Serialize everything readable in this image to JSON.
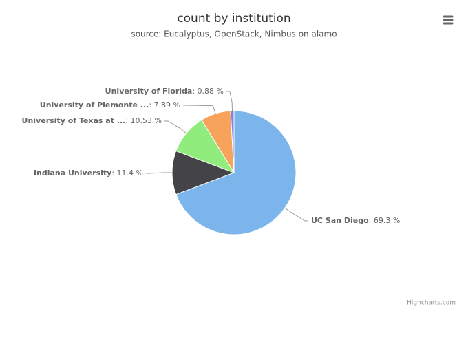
{
  "chart_data": {
    "type": "pie",
    "title": "count by institution",
    "subtitle": "source: Eucalyptus, OpenStack, Nimbus on alamo",
    "categories": [
      "UC San Diego",
      "Indiana University",
      "University of Texas at ...",
      "University of Piemonte ...",
      "University of Florida"
    ],
    "values": [
      69.3,
      11.4,
      10.53,
      7.89,
      0.88
    ],
    "value_labels": [
      "69.3 %",
      "11.4 %",
      "10.53 %",
      "7.89 %",
      "0.88 %"
    ],
    "label_separator": ": ",
    "colors": [
      "#7cb5ec",
      "#434348",
      "#90ed7d",
      "#f7a35c",
      "#8085e9"
    ],
    "credits": "Highcharts.com"
  }
}
